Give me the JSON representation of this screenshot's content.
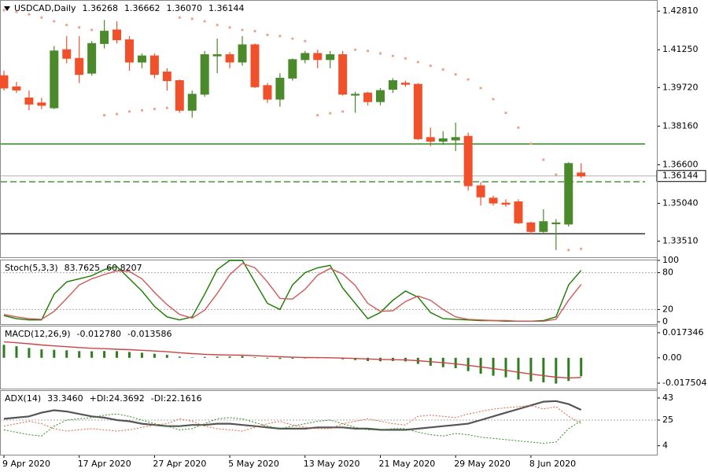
{
  "chart_data": [
    {
      "type": "candlestick",
      "title": "USDCAD,Daily",
      "categories": [
        "9 Apr 2020",
        null,
        null,
        null,
        null,
        null,
        "17 Apr 2020",
        null,
        null,
        null,
        null,
        null,
        "27 Apr 2020",
        null,
        null,
        null,
        null,
        null,
        "5 May 2020",
        null,
        null,
        null,
        null,
        null,
        "13 May 2020",
        null,
        null,
        null,
        null,
        null,
        "21 May 2020",
        null,
        null,
        null,
        null,
        null,
        "29 May 2020",
        null,
        null,
        null,
        null,
        null,
        "8 Jun 2020",
        null,
        null,
        null,
        null
      ],
      "open": [
        1.402,
        1.3975,
        1.393,
        1.391,
        1.389,
        1.4125,
        1.409,
        1.403,
        1.415,
        1.4205,
        1.4165,
        1.4075,
        1.41,
        1.4035,
        1.4,
        1.388,
        1.3945,
        1.41,
        1.4105,
        1.4075,
        1.4145,
        1.398,
        1.3925,
        1.401,
        1.4085,
        1.411,
        1.4085,
        1.4105,
        1.3945,
        1.395,
        1.3915,
        1.3965,
        1.399,
        1.3985,
        1.377,
        1.3755,
        1.376,
        1.3775,
        1.3575,
        1.3525,
        1.3505,
        1.351,
        1.3425,
        1.339,
        1.3425,
        1.342,
        1.36268
      ],
      "high": [
        1.404,
        1.3995,
        1.396,
        1.393,
        1.414,
        1.418,
        1.418,
        1.416,
        1.4245,
        1.424,
        1.418,
        1.411,
        1.411,
        1.405,
        1.4005,
        1.396,
        1.412,
        1.417,
        1.4115,
        1.418,
        1.415,
        1.399,
        1.403,
        1.409,
        1.412,
        1.4125,
        1.412,
        1.412,
        1.3955,
        1.3955,
        1.397,
        1.401,
        1.4,
        1.399,
        1.381,
        1.3795,
        1.383,
        1.379,
        1.359,
        1.3535,
        1.352,
        1.352,
        1.343,
        1.348,
        1.344,
        1.367,
        1.36662
      ],
      "low": [
        1.396,
        1.395,
        1.388,
        1.3885,
        1.3885,
        1.407,
        1.399,
        1.402,
        1.413,
        1.415,
        1.404,
        1.405,
        1.401,
        1.396,
        1.387,
        1.385,
        1.3935,
        1.403,
        1.405,
        1.406,
        1.397,
        1.391,
        1.3895,
        1.4,
        1.407,
        1.405,
        1.405,
        1.394,
        1.387,
        1.39,
        1.39,
        1.395,
        1.3975,
        1.376,
        1.3735,
        1.374,
        1.3715,
        1.3555,
        1.3495,
        1.3495,
        1.349,
        1.342,
        1.338,
        1.3385,
        1.3315,
        1.341,
        1.3607
      ],
      "low_labels": [
        null,
        null,
        null,
        null,
        null,
        null,
        null,
        null,
        null,
        null,
        null,
        null,
        null,
        null,
        null,
        null,
        null,
        null,
        null,
        null,
        null,
        null,
        null,
        null,
        null,
        null,
        null,
        null,
        null,
        null,
        null,
        null,
        null,
        null,
        null,
        null,
        null,
        null,
        null,
        null,
        null,
        null,
        null,
        null,
        null,
        null,
        "1.36070"
      ],
      "close": [
        1.397,
        1.3962,
        1.3905,
        1.39,
        1.412,
        1.409,
        1.4025,
        1.415,
        1.42,
        1.4165,
        1.4075,
        1.41,
        1.4025,
        1.4,
        1.388,
        1.3945,
        1.4105,
        1.4105,
        1.4075,
        1.4145,
        1.3975,
        1.3925,
        1.401,
        1.4085,
        1.411,
        1.4085,
        1.4105,
        1.3945,
        1.3945,
        1.3915,
        1.396,
        1.4,
        1.3985,
        1.3765,
        1.3755,
        1.3765,
        1.377,
        1.3575,
        1.353,
        1.3505,
        1.35,
        1.3425,
        1.339,
        1.343,
        1.3425,
        1.3665,
        1.36144
      ],
      "up_color": "#4a8a2a",
      "down_color": "#f0502a",
      "psar": {
        "color": "#f0a080",
        "values": [
          1.4285,
          1.4278,
          1.4268,
          1.4255,
          1.424,
          1.4225,
          1.4215,
          1.4205,
          1.386,
          1.3865,
          1.3875,
          1.388,
          1.3885,
          1.389,
          1.4255,
          1.425,
          1.424,
          1.4225,
          1.4215,
          1.4205,
          1.42,
          1.4185,
          1.418,
          1.417,
          1.416,
          1.386,
          1.3868,
          1.3875,
          1.4125,
          1.412,
          1.411,
          1.41,
          1.409,
          1.4075,
          1.406,
          1.4045,
          1.4025,
          1.4005,
          1.397,
          1.3925,
          1.387,
          1.381,
          1.3745,
          1.368,
          1.362,
          1.3315,
          1.332
        ]
      },
      "hlines": [
        {
          "value": 1.3744,
          "color": "#2e8b1e",
          "dashed": false
        },
        {
          "value": 1.3591,
          "color": "#3a8a2a",
          "dashed": true
        },
        {
          "value": 1.3381,
          "color": "#333333",
          "dashed": false
        }
      ],
      "ylim": [
        1.3286,
        1.4326
      ],
      "yticks": [
        {
          "value": 1.4281,
          "label": "1.42810"
        },
        {
          "value": 1.4125,
          "label": "1.41250"
        },
        {
          "value": 1.3972,
          "label": "1.39720"
        },
        {
          "value": 1.3816,
          "label": "1.38160"
        },
        {
          "value": 1.366,
          "label": "1.36600"
        },
        {
          "value": 1.3504,
          "label": "1.35040"
        },
        {
          "value": 1.3351,
          "label": "1.33510"
        }
      ]
    },
    {
      "type": "line",
      "title": "Stoch(5,3,3)",
      "series": [
        {
          "color": "#1a7a00",
          "style": "solid",
          "values": [
            10,
            5,
            3,
            3,
            45,
            65,
            70,
            75,
            85,
            90,
            70,
            50,
            25,
            8,
            3,
            8,
            45,
            85,
            100,
            100,
            65,
            30,
            20,
            60,
            80,
            88,
            92,
            55,
            30,
            5,
            15,
            35,
            50,
            40,
            15,
            5,
            4,
            3,
            2,
            2,
            1,
            1,
            1,
            2,
            8,
            60,
            83.7625
          ]
        },
        {
          "color": "#d05a5a",
          "style": "solid",
          "values": [
            12,
            8,
            5,
            4,
            17,
            38,
            60,
            70,
            77,
            83,
            82,
            70,
            48,
            28,
            12,
            6,
            19,
            46,
            77,
            95,
            88,
            65,
            38,
            37,
            53,
            76,
            87,
            78,
            59,
            30,
            17,
            18,
            33,
            42,
            35,
            20,
            8,
            4,
            3,
            2,
            2,
            1,
            1,
            1,
            4,
            35,
            60.8207
          ]
        }
      ],
      "levels": [
        80,
        20
      ],
      "ylim": [
        -3.8,
        101.3
      ],
      "yticks": [
        100,
        80,
        20,
        0
      ]
    },
    {
      "type": "line",
      "title": "MACD(12,26,9)",
      "series": [
        {
          "color": "#2e7d1e",
          "style": "bars",
          "values": [
            0.009,
            0.008,
            0.0068,
            0.0058,
            0.0055,
            0.0052,
            0.0046,
            0.0045,
            0.0047,
            0.0046,
            0.004,
            0.0035,
            0.0028,
            0.002,
            0.0008,
            0.0003,
            0.0006,
            0.0008,
            0.0009,
            0.0012,
            0.0004,
            -0.0005,
            -0.0008,
            -0.0006,
            -0.0004,
            -0.0003,
            -0.0002,
            -0.001,
            -0.0016,
            -0.0022,
            -0.0024,
            -0.0022,
            -0.0025,
            -0.0042,
            -0.0055,
            -0.0065,
            -0.0072,
            -0.0092,
            -0.011,
            -0.0124,
            -0.0135,
            -0.015,
            -0.0163,
            -0.017,
            -0.0178,
            -0.016,
            -0.01278
          ],
          "value_labels": [
            null,
            null,
            null,
            null,
            null,
            null,
            null,
            null,
            null,
            null,
            null,
            null,
            null,
            null,
            null,
            null,
            null,
            null,
            null,
            null,
            null,
            null,
            null,
            null,
            null,
            null,
            null,
            null,
            null,
            null,
            null,
            null,
            null,
            null,
            null,
            null,
            null,
            null,
            null,
            null,
            null,
            null,
            null,
            null,
            null,
            null,
            "-0.012780"
          ]
        },
        {
          "color": "#cc4444",
          "style": "solid",
          "values": [
            0.011,
            0.0104,
            0.0097,
            0.0089,
            0.0082,
            0.0077,
            0.0071,
            0.0066,
            0.0063,
            0.0059,
            0.0056,
            0.0052,
            0.0047,
            0.0042,
            0.0035,
            0.0029,
            0.0024,
            0.0021,
            0.0019,
            0.0018,
            0.0015,
            0.0011,
            0.0007,
            0.0004,
            0.0002,
            0.0001,
            0,
            -0.0002,
            -0.0005,
            -0.0008,
            -0.0011,
            -0.0013,
            -0.0015,
            -0.002,
            -0.0027,
            -0.0034,
            -0.0042,
            -0.0052,
            -0.0063,
            -0.0075,
            -0.0087,
            -0.01,
            -0.0112,
            -0.0124,
            -0.0134,
            -0.0139,
            -0.013586
          ]
        }
      ],
      "ylim": [
        -0.0213,
        0.0222
      ],
      "yticks": [
        0.017346,
        {
          "value": 0,
          "label": "0.00"
        },
        -0.017504
      ]
    },
    {
      "type": "line",
      "title": "ADX(14)",
      "series": [
        {
          "color": "#555555",
          "style": "thick",
          "values": [
            26,
            27,
            28,
            31,
            33,
            32,
            30,
            28,
            27,
            25,
            24,
            22,
            21,
            20,
            20,
            21,
            21,
            22,
            22,
            21,
            20,
            19,
            18,
            18,
            18,
            19,
            19,
            19,
            18,
            18,
            17,
            17,
            17,
            18,
            19,
            20,
            21,
            22,
            25,
            28,
            31,
            34,
            37,
            40,
            40.5,
            38,
            33.346
          ],
          "value_labels": [
            null,
            null,
            null,
            null,
            null,
            null,
            null,
            null,
            null,
            null,
            null,
            null,
            null,
            null,
            null,
            null,
            null,
            null,
            null,
            null,
            null,
            null,
            null,
            null,
            null,
            null,
            null,
            null,
            null,
            null,
            null,
            null,
            null,
            null,
            null,
            null,
            null,
            null,
            null,
            null,
            null,
            null,
            null,
            null,
            null,
            null,
            "33.3460"
          ]
        },
        {
          "name": "+DI:",
          "color": "#2e8b1e",
          "style": "dotted",
          "values": [
            17,
            15,
            13,
            12,
            20,
            25,
            26,
            27,
            29,
            30,
            28,
            25,
            22,
            20,
            17,
            18,
            22,
            26,
            27,
            26,
            23,
            20,
            18,
            20,
            22,
            24,
            25,
            22,
            19,
            17,
            17,
            18,
            18,
            15,
            13,
            12,
            14,
            13,
            11,
            10,
            9,
            8,
            7,
            6,
            7,
            18,
            24.3692
          ]
        },
        {
          "name": "-DI:",
          "color": "#e06040",
          "style": "dotted",
          "values": [
            20,
            22,
            24,
            22,
            18,
            16,
            17,
            18,
            17,
            16,
            17,
            19,
            21,
            22,
            26,
            24,
            20,
            18,
            17,
            16,
            19,
            22,
            24,
            21,
            19,
            18,
            18,
            22,
            24,
            26,
            24,
            22,
            21,
            28,
            29,
            28,
            27,
            30,
            32,
            34,
            35,
            36,
            37,
            34,
            36,
            28,
            22.1616
          ]
        }
      ],
      "levels": [
        25
      ],
      "ylim": [
        -3.3,
        49.4
      ],
      "yticks": [
        43,
        25,
        4
      ]
    }
  ]
}
